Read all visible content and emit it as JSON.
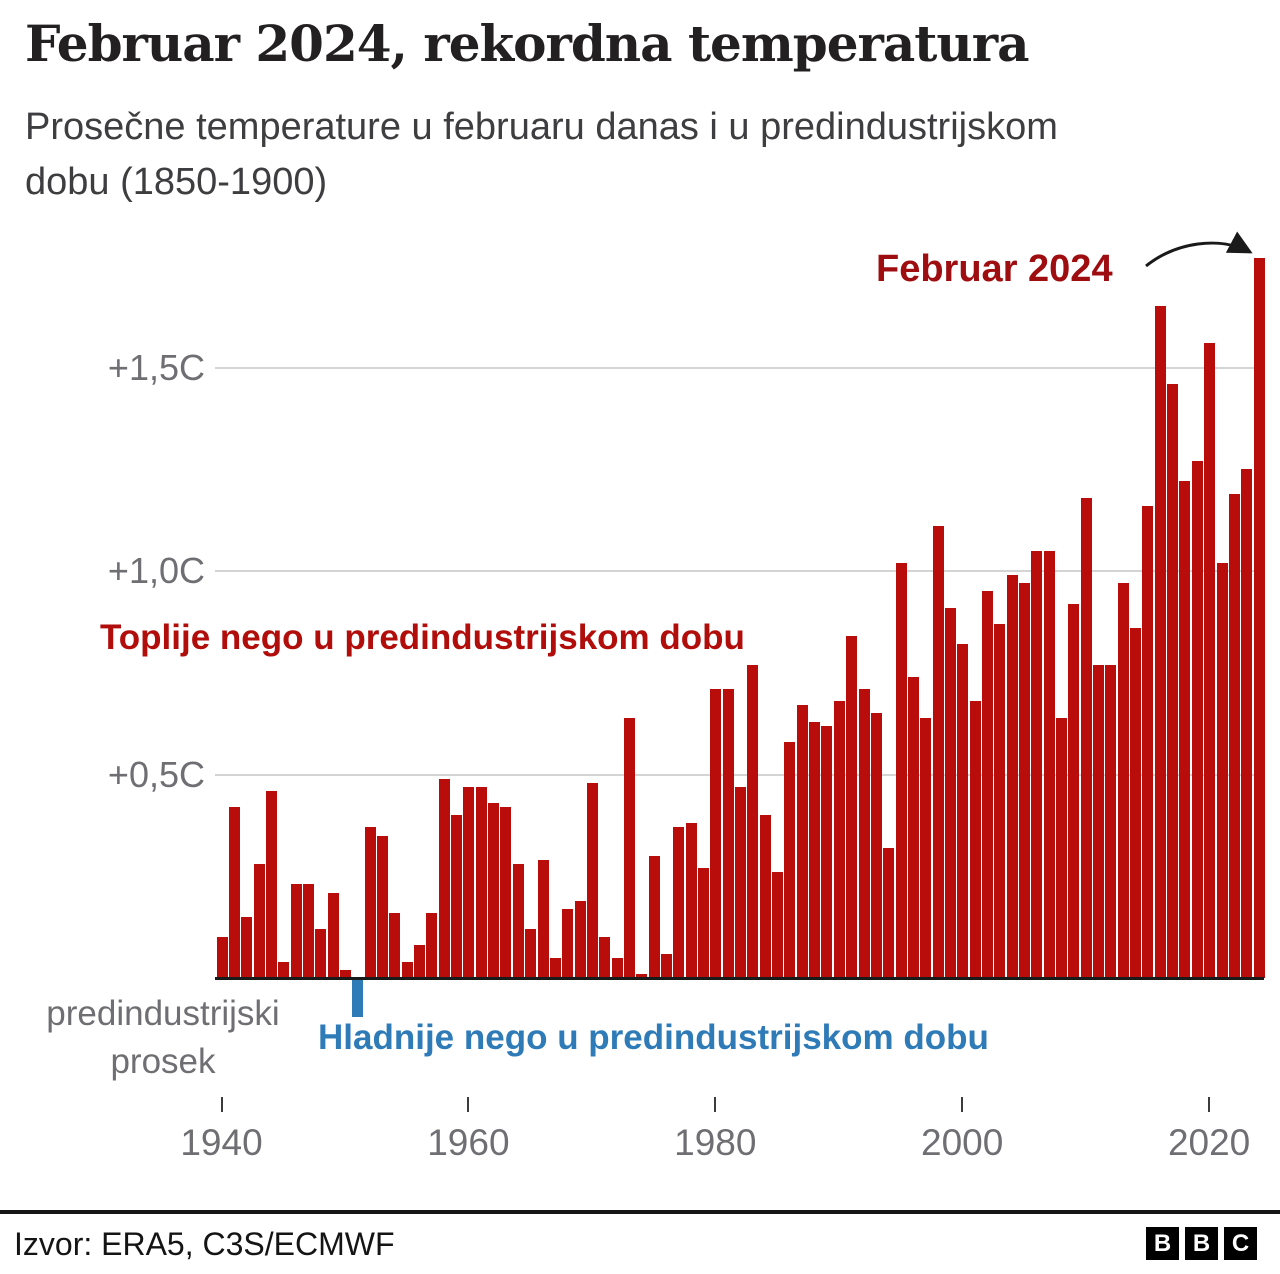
{
  "chart_data": {
    "type": "bar",
    "title": "Februar 2024, rekordna temperatura",
    "subtitle": "Prosečne temperature u februaru danas i u predindustrijskom dobu (1850-1900)",
    "subtitle_lines": [
      "Prosečne temperature u februaru danas i u predindustrijskom",
      "dobu (1850-1900)"
    ],
    "xlabel": "",
    "ylabel": "",
    "ylim": [
      -0.2,
      1.85
    ],
    "grid": true,
    "year_start": 1940,
    "year_end": 2024,
    "values": [
      0.1,
      0.42,
      0.15,
      0.28,
      0.46,
      0.04,
      0.23,
      0.23,
      0.12,
      0.21,
      0.02,
      -0.09,
      0.37,
      0.35,
      0.16,
      0.04,
      0.08,
      0.16,
      0.49,
      0.4,
      0.47,
      0.47,
      0.43,
      0.42,
      0.28,
      0.12,
      0.29,
      0.05,
      0.17,
      0.19,
      0.48,
      0.1,
      0.05,
      0.64,
      0.01,
      0.3,
      0.06,
      0.37,
      0.38,
      0.27,
      0.71,
      0.71,
      0.47,
      0.77,
      0.4,
      0.26,
      0.58,
      0.67,
      0.63,
      0.62,
      0.68,
      0.84,
      0.71,
      0.65,
      0.32,
      1.02,
      0.74,
      0.64,
      1.11,
      0.91,
      0.82,
      0.68,
      0.95,
      0.87,
      0.99,
      0.97,
      1.05,
      1.05,
      0.64,
      0.92,
      1.18,
      0.77,
      0.77,
      0.97,
      0.86,
      1.16,
      1.65,
      1.46,
      1.22,
      1.27,
      1.56,
      1.02,
      1.19,
      1.25,
      1.77
    ],
    "y_ticks": [
      {
        "value": 0.5,
        "label": "+0,5C"
      },
      {
        "value": 1.0,
        "label": "+1,0C"
      },
      {
        "value": 1.5,
        "label": "+1,5C"
      }
    ],
    "x_ticks": [
      {
        "value": 1940,
        "label": "1940"
      },
      {
        "value": 1960,
        "label": "1960"
      },
      {
        "value": 1980,
        "label": "1980"
      },
      {
        "value": 2000,
        "label": "2000"
      },
      {
        "value": 2020,
        "label": "2020"
      }
    ],
    "baseline_label": {
      "line1": "predindustrijski",
      "line2": "prosek"
    }
  },
  "annotations": {
    "record": {
      "text": "Februar 2024",
      "color": "#9e0d10"
    },
    "warmer": {
      "text": "Toplije nego u predindustrijskom dobu",
      "color": "#b00d0b"
    },
    "colder": {
      "text": "Hladnije nego u predindustrijskom dobu",
      "color": "#2e7bb8"
    }
  },
  "colors": {
    "bar_positive": "#b80d0a",
    "bar_negative": "#2e7bb8",
    "gridline": "#d4d4d4",
    "axis_text": "#6f6f73",
    "zero_line": "#1a1a1a",
    "arrow": "#1a1a1a"
  },
  "footer": {
    "source": "Izvor: ERA5, C3S/ECMWF",
    "logo": [
      "B",
      "B",
      "C"
    ]
  }
}
